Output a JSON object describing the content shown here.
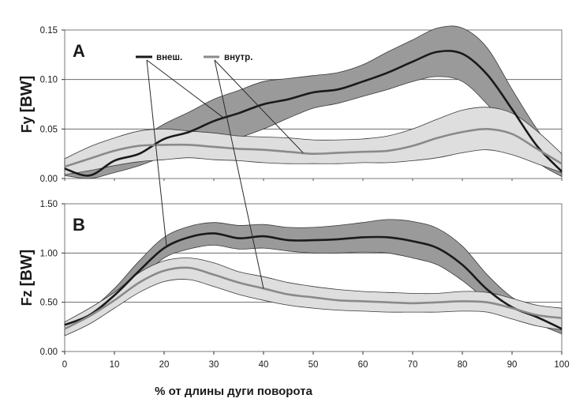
{
  "chart_data": [
    {
      "type": "line",
      "panel_label": "A",
      "ylabel_main": "Fy",
      "ylabel_unit": "[BW]",
      "ylim": [
        0,
        0.15
      ],
      "yticks": [
        0,
        0.05,
        0.1,
        0.15
      ],
      "ytick_labels": [
        "0.00",
        "0.05",
        "0.10",
        "0.15"
      ],
      "xlim": [
        0,
        100
      ],
      "grid_y": true,
      "legend_placement": "top-left, with leader lines to curves",
      "series": [
        {
          "name": "внеш.",
          "color": "#1a1a1a",
          "band_color": "#9a9a9a",
          "x": [
            0,
            5,
            10,
            15,
            20,
            25,
            30,
            35,
            40,
            45,
            50,
            55,
            60,
            65,
            70,
            75,
            80,
            85,
            90,
            95,
            100
          ],
          "mean": [
            0.01,
            0.003,
            0.018,
            0.025,
            0.04,
            0.047,
            0.058,
            0.066,
            0.075,
            0.08,
            0.087,
            0.09,
            0.098,
            0.107,
            0.118,
            0.128,
            0.126,
            0.105,
            0.07,
            0.033,
            0.007
          ],
          "lower": [
            0.003,
            0.0,
            0.006,
            0.013,
            0.022,
            0.027,
            0.034,
            0.041,
            0.05,
            0.061,
            0.071,
            0.076,
            0.083,
            0.09,
            0.098,
            0.103,
            0.098,
            0.075,
            0.045,
            0.017,
            0.002
          ],
          "upper": [
            0.017,
            0.01,
            0.028,
            0.04,
            0.055,
            0.067,
            0.08,
            0.089,
            0.098,
            0.101,
            0.104,
            0.107,
            0.115,
            0.128,
            0.14,
            0.152,
            0.152,
            0.132,
            0.09,
            0.05,
            0.017
          ]
        },
        {
          "name": "внутр.",
          "color": "#8a8a8a",
          "band_color": "#dedede",
          "x": [
            0,
            5,
            10,
            15,
            20,
            25,
            30,
            35,
            40,
            45,
            50,
            55,
            60,
            65,
            70,
            75,
            80,
            85,
            90,
            95,
            100
          ],
          "mean": [
            0.012,
            0.02,
            0.028,
            0.033,
            0.034,
            0.034,
            0.032,
            0.03,
            0.029,
            0.027,
            0.025,
            0.026,
            0.027,
            0.028,
            0.033,
            0.041,
            0.047,
            0.05,
            0.045,
            0.03,
            0.015
          ],
          "lower": [
            0.004,
            0.008,
            0.013,
            0.017,
            0.019,
            0.021,
            0.019,
            0.018,
            0.016,
            0.015,
            0.015,
            0.015,
            0.016,
            0.016,
            0.018,
            0.021,
            0.026,
            0.029,
            0.024,
            0.015,
            0.006
          ],
          "upper": [
            0.02,
            0.032,
            0.041,
            0.048,
            0.05,
            0.048,
            0.046,
            0.043,
            0.042,
            0.041,
            0.039,
            0.039,
            0.04,
            0.043,
            0.05,
            0.06,
            0.069,
            0.072,
            0.066,
            0.048,
            0.025
          ]
        }
      ]
    },
    {
      "type": "line",
      "panel_label": "B",
      "ylabel_main": "Fz",
      "ylabel_unit": "[BW]",
      "ylim": [
        0,
        1.5
      ],
      "yticks": [
        0,
        0.5,
        1.0,
        1.5
      ],
      "ytick_labels": [
        "0.00",
        "0.50",
        "1.00",
        "1.50"
      ],
      "xlim": [
        0,
        100
      ],
      "xticks": [
        0,
        10,
        20,
        30,
        40,
        50,
        60,
        70,
        80,
        90,
        100
      ],
      "xtick_labels": [
        "0",
        "10",
        "20",
        "30",
        "40",
        "50",
        "60",
        "70",
        "80",
        "90",
        "100"
      ],
      "xlabel": "% от длины дуги поворота",
      "grid_y": true,
      "series": [
        {
          "name": "внеш.",
          "color": "#1a1a1a",
          "band_color": "#9a9a9a",
          "x": [
            0,
            5,
            10,
            15,
            20,
            25,
            30,
            35,
            40,
            45,
            50,
            55,
            60,
            65,
            70,
            75,
            80,
            85,
            90,
            95,
            100
          ],
          "mean": [
            0.27,
            0.37,
            0.57,
            0.82,
            1.05,
            1.16,
            1.2,
            1.15,
            1.17,
            1.13,
            1.13,
            1.14,
            1.16,
            1.16,
            1.12,
            1.05,
            0.88,
            0.63,
            0.45,
            0.35,
            0.23
          ],
          "lower": [
            0.23,
            0.32,
            0.5,
            0.73,
            0.95,
            1.04,
            1.08,
            1.04,
            1.05,
            1.02,
            1.0,
            1.0,
            1.01,
            1.0,
            0.95,
            0.88,
            0.72,
            0.52,
            0.38,
            0.28,
            0.18
          ],
          "upper": [
            0.3,
            0.42,
            0.64,
            0.92,
            1.16,
            1.27,
            1.31,
            1.28,
            1.29,
            1.26,
            1.26,
            1.28,
            1.31,
            1.34,
            1.32,
            1.25,
            1.07,
            0.78,
            0.55,
            0.43,
            0.3
          ]
        },
        {
          "name": "внутр.",
          "color": "#8a8a8a",
          "band_color": "#dedede",
          "x": [
            0,
            5,
            10,
            15,
            20,
            25,
            30,
            35,
            40,
            45,
            50,
            55,
            60,
            65,
            70,
            75,
            80,
            85,
            90,
            95,
            100
          ],
          "mean": [
            0.23,
            0.36,
            0.52,
            0.7,
            0.82,
            0.85,
            0.78,
            0.7,
            0.64,
            0.58,
            0.55,
            0.52,
            0.51,
            0.5,
            0.49,
            0.5,
            0.51,
            0.5,
            0.44,
            0.37,
            0.34
          ],
          "lower": [
            0.16,
            0.28,
            0.44,
            0.6,
            0.71,
            0.73,
            0.66,
            0.58,
            0.52,
            0.47,
            0.44,
            0.42,
            0.41,
            0.4,
            0.4,
            0.4,
            0.41,
            0.4,
            0.33,
            0.26,
            0.22
          ],
          "upper": [
            0.3,
            0.44,
            0.6,
            0.8,
            0.92,
            0.95,
            0.9,
            0.81,
            0.76,
            0.7,
            0.66,
            0.63,
            0.61,
            0.6,
            0.59,
            0.59,
            0.61,
            0.6,
            0.54,
            0.47,
            0.44
          ]
        }
      ]
    }
  ]
}
